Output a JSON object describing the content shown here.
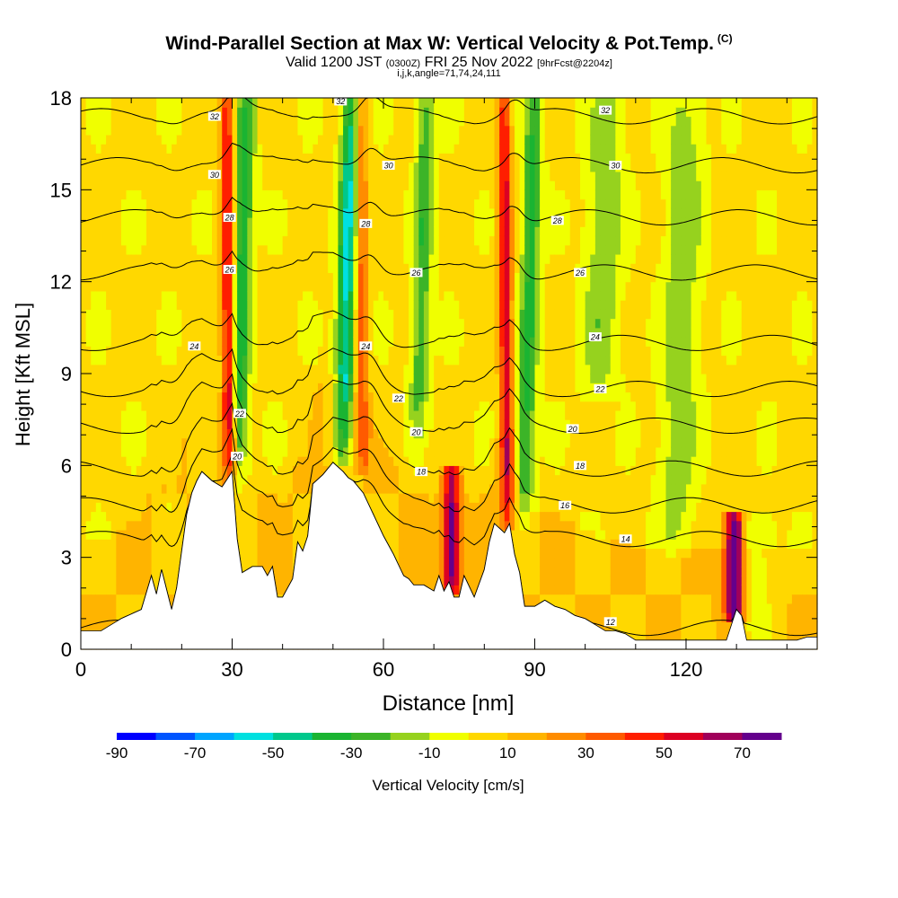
{
  "header": {
    "title": "Wind-Parallel Section at Max W: Vertical Velocity & Pot.Temp.",
    "copyright": "(C)",
    "valid_prefix": "Valid 1200 JST",
    "valid_z": "(0300Z)",
    "valid_date": "FRI 25 Nov 2022",
    "fcst": "[9hrFcst@2204z]",
    "indices": "i,j,k,angle=71,74,24,111"
  },
  "colors": {
    "palette": [
      "#0000ff",
      "#0055ff",
      "#00a5ff",
      "#00e0e0",
      "#00c88c",
      "#1ab432",
      "#3cb428",
      "#96d21e",
      "#f0ff00",
      "#ffd800",
      "#ffb400",
      "#ff8c00",
      "#ff5a00",
      "#ff1e00",
      "#dc0023",
      "#a0005a",
      "#64008c"
    ],
    "contour": "#000000",
    "terrain": "#ffffff"
  },
  "colorbar": {
    "tick_labels": [
      "-90",
      "-70",
      "-50",
      "-30",
      "-10",
      "10",
      "30",
      "50",
      "70"
    ],
    "label": "Vertical Velocity [cm/s]"
  },
  "chart_data": {
    "type": "heatmap",
    "xlabel": "Distance [nm]",
    "ylabel": "Height [Kft MSL]",
    "xlim": [
      0,
      146
    ],
    "ylim": [
      0,
      18
    ],
    "x_ticks": [
      "0",
      "30",
      "60",
      "90",
      "120"
    ],
    "y_ticks": [
      "0",
      "3",
      "6",
      "9",
      "12",
      "15",
      "18"
    ],
    "terrain": {
      "x": [
        0,
        4,
        8,
        12,
        14,
        15,
        16,
        18,
        19,
        21,
        22,
        23,
        24,
        26,
        28,
        30,
        31,
        32,
        34,
        36,
        37,
        38,
        39,
        40,
        42,
        43,
        44,
        45,
        46,
        48,
        50,
        52,
        53,
        54,
        56,
        58,
        60,
        62,
        64,
        65,
        66,
        68,
        70,
        71,
        72,
        73,
        74,
        75,
        76,
        78,
        80,
        81,
        82,
        84,
        85,
        86,
        87,
        88,
        90,
        92,
        94,
        96,
        98,
        100,
        102,
        104,
        106,
        108,
        110,
        112,
        114,
        116,
        118,
        120,
        122,
        124,
        126,
        128,
        129,
        130,
        131,
        132,
        134,
        136,
        138,
        140,
        142,
        144,
        146
      ],
      "height_kft": [
        0.6,
        0.6,
        1.0,
        1.3,
        2.4,
        1.8,
        2.6,
        1.3,
        2.0,
        4.4,
        5.1,
        5.5,
        5.8,
        5.5,
        5.3,
        5.8,
        3.6,
        2.5,
        2.7,
        2.7,
        2.4,
        2.7,
        1.7,
        1.7,
        2.3,
        3.5,
        3.2,
        3.7,
        5.4,
        5.7,
        6.1,
        5.8,
        5.6,
        5.5,
        5.1,
        4.4,
        3.7,
        3.1,
        2.4,
        2.3,
        2.1,
        2.1,
        1.9,
        2.4,
        1.9,
        2.2,
        1.7,
        1.7,
        2.4,
        1.7,
        2.6,
        3.5,
        4.1,
        3.8,
        4.1,
        3.1,
        2.5,
        1.4,
        1.4,
        1.6,
        1.4,
        1.3,
        1.1,
        1.0,
        0.8,
        0.6,
        0.6,
        0.5,
        0.3,
        0.3,
        0.3,
        0.3,
        0.3,
        0.3,
        0.3,
        0.3,
        0.3,
        0.3,
        0.8,
        1.3,
        1.1,
        0.3,
        0.3,
        0.3,
        0.3,
        0.3,
        0.3,
        0.4,
        0.4
      ]
    },
    "updrafts_cm_s": [
      {
        "x": 29.5,
        "z_bottom_kft": 5.8,
        "z_top_kft": 18,
        "w_max": 55
      },
      {
        "x": 56,
        "z_bottom_kft": 6.2,
        "z_top_kft": 18,
        "w_max": 35
      },
      {
        "x": 73.5,
        "z_bottom_kft": 2.5,
        "z_top_kft": 5.5,
        "w_max": 65
      },
      {
        "x": 84.5,
        "z_bottom_kft": 4.5,
        "z_top_kft": 18,
        "w_max": 55
      },
      {
        "x": 129.5,
        "z_bottom_kft": 1.5,
        "z_top_kft": 4,
        "w_max": 80
      }
    ],
    "downdrafts_cm_s": [
      {
        "x": 31,
        "z_bottom_kft": 6,
        "z_top_kft": 18,
        "w_min": -40
      },
      {
        "x": 52,
        "z_bottom_kft": 7,
        "z_top_kft": 18,
        "w_min": -55
      },
      {
        "x": 67,
        "z_bottom_kft": 8,
        "z_top_kft": 18,
        "w_min": -30
      },
      {
        "x": 88,
        "z_bottom_kft": 5,
        "z_top_kft": 18,
        "w_min": -35
      },
      {
        "x": 103,
        "z_bottom_kft": 9,
        "z_top_kft": 18,
        "w_min": -20
      },
      {
        "x": 118,
        "z_bottom_kft": 4,
        "z_top_kft": 18,
        "w_min": -20
      },
      {
        "x": 134,
        "z_bottom_kft": 1,
        "z_top_kft": 3.5,
        "w_min": -15
      }
    ],
    "isentropes": [
      {
        "label": "12",
        "height_kft": 0.7
      },
      {
        "label": "14",
        "height_kft": 3.6
      },
      {
        "label": "16",
        "height_kft": 4.7
      },
      {
        "label": "18",
        "height_kft": 5.9
      },
      {
        "label": "20",
        "height_kft": 7.3
      },
      {
        "label": "22",
        "height_kft": 8.5
      },
      {
        "label": "24",
        "height_kft": 10.0
      },
      {
        "label": "26",
        "height_kft": 12.3
      },
      {
        "label": "28",
        "height_kft": 14.1
      },
      {
        "label": "30",
        "height_kft": 15.8
      },
      {
        "label": "32",
        "height_kft": 17.4
      }
    ],
    "contour_labels": [
      {
        "text": "32",
        "x": 26.5,
        "z_kft": 17.4
      },
      {
        "text": "32",
        "x": 51.5,
        "z_kft": 17.9
      },
      {
        "text": "32",
        "x": 104,
        "z_kft": 17.6
      },
      {
        "text": "30",
        "x": 26.5,
        "z_kft": 15.5
      },
      {
        "text": "30",
        "x": 61,
        "z_kft": 15.8
      },
      {
        "text": "30",
        "x": 106,
        "z_kft": 15.8
      },
      {
        "text": "28",
        "x": 29.5,
        "z_kft": 14.1
      },
      {
        "text": "28",
        "x": 56.5,
        "z_kft": 13.9
      },
      {
        "text": "28",
        "x": 94.5,
        "z_kft": 14.0
      },
      {
        "text": "26",
        "x": 29.5,
        "z_kft": 12.4
      },
      {
        "text": "26",
        "x": 66.5,
        "z_kft": 12.3
      },
      {
        "text": "26",
        "x": 99,
        "z_kft": 12.3
      },
      {
        "text": "24",
        "x": 22.5,
        "z_kft": 9.9
      },
      {
        "text": "24",
        "x": 56.5,
        "z_kft": 9.9
      },
      {
        "text": "24",
        "x": 102,
        "z_kft": 10.2
      },
      {
        "text": "22",
        "x": 31.5,
        "z_kft": 7.7
      },
      {
        "text": "22",
        "x": 63,
        "z_kft": 8.2
      },
      {
        "text": "22",
        "x": 103,
        "z_kft": 8.5
      },
      {
        "text": "20",
        "x": 31,
        "z_kft": 6.3
      },
      {
        "text": "20",
        "x": 66.5,
        "z_kft": 7.1
      },
      {
        "text": "20",
        "x": 97.5,
        "z_kft": 7.2
      },
      {
        "text": "18",
        "x": 67.5,
        "z_kft": 5.8
      },
      {
        "text": "18",
        "x": 99,
        "z_kft": 6.0
      },
      {
        "text": "16",
        "x": 96,
        "z_kft": 4.7
      },
      {
        "text": "14",
        "x": 108,
        "z_kft": 3.6
      },
      {
        "text": "12",
        "x": 105,
        "z_kft": 0.9
      }
    ],
    "grid": false,
    "legend": "bottom"
  }
}
